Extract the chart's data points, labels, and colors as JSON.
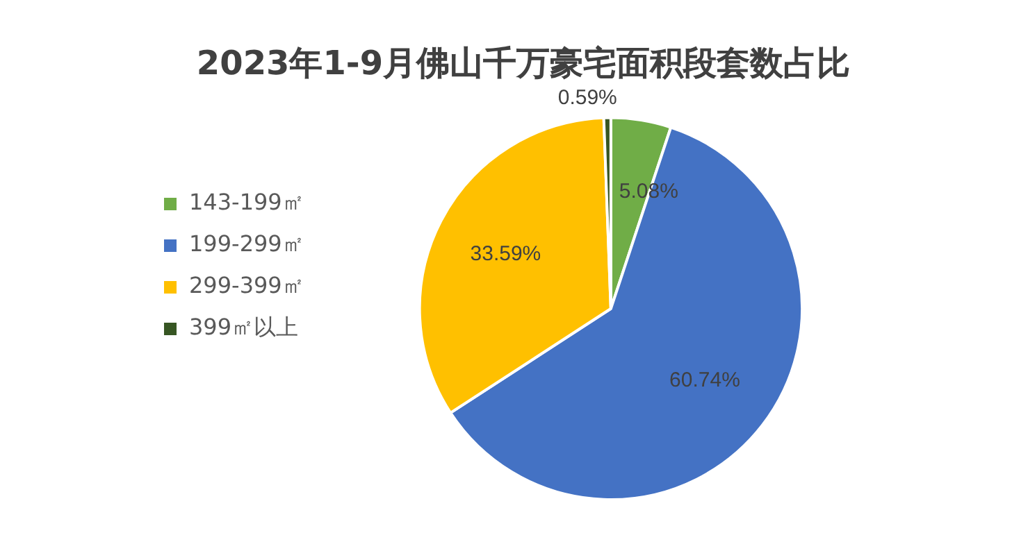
{
  "chart_data": {
    "type": "pie",
    "title": "2023年1-9月佛山千万豪宅面积段套数占比",
    "categories": [
      "143-199㎡",
      "199-299㎡",
      "299-399㎡",
      "399㎡以上"
    ],
    "values": [
      5.08,
      60.74,
      33.59,
      0.59
    ],
    "value_labels": [
      "5.08%",
      "60.74%",
      "33.59%",
      "0.59%"
    ],
    "colors": [
      "#70ad47",
      "#4472c4",
      "#ffc000",
      "#375623"
    ],
    "legend": "left"
  }
}
